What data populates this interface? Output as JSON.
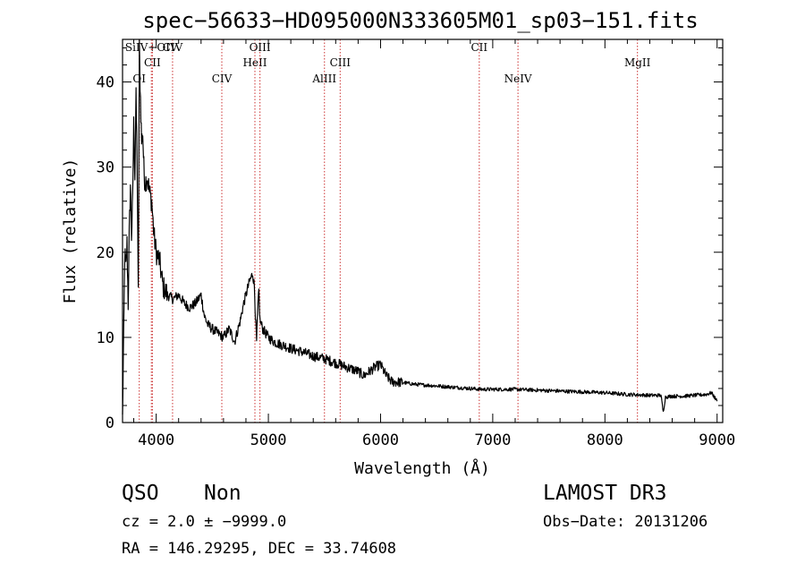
{
  "chart_data": {
    "type": "line",
    "title": "spec−56633−HD095000N333605M01_sp03−151.fits",
    "xlabel": "Wavelength (Å)",
    "ylabel": "Flux (relative)",
    "xlim": [
      3700,
      9050
    ],
    "ylim": [
      0,
      45
    ],
    "xticks": [
      4000,
      5000,
      6000,
      7000,
      8000,
      9000
    ],
    "yticks": [
      0,
      10,
      20,
      30,
      40
    ],
    "line_color": "#000000",
    "marker_color": "#cc3333",
    "spectrum": {
      "name": "flux",
      "x": [
        3700,
        3710,
        3720,
        3730,
        3740,
        3750,
        3760,
        3770,
        3780,
        3790,
        3800,
        3810,
        3820,
        3830,
        3840,
        3850,
        3860,
        3870,
        3880,
        3890,
        3900,
        3920,
        3940,
        3960,
        3980,
        4000,
        4030,
        4060,
        4100,
        4150,
        4200,
        4250,
        4300,
        4350,
        4400,
        4430,
        4460,
        4500,
        4550,
        4600,
        4650,
        4700,
        4720,
        4750,
        4780,
        4800,
        4830,
        4860,
        4875,
        4885,
        4895,
        4905,
        4915,
        4925,
        4950,
        5000,
        5050,
        5100,
        5150,
        5200,
        5300,
        5400,
        5500,
        5600,
        5700,
        5800,
        5850,
        5900,
        5950,
        6000,
        6050,
        6100,
        6200,
        6300,
        6400,
        6500,
        6600,
        6700,
        6800,
        6900,
        7000,
        7200,
        7400,
        7600,
        7800,
        8000,
        8200,
        8400,
        8500,
        8520,
        8540,
        8600,
        8700,
        8800,
        8900,
        8950,
        9000
      ],
      "values": [
        0.5,
        10,
        20,
        18,
        21,
        14,
        22,
        28,
        22,
        26,
        35,
        29,
        38,
        31,
        15,
        44,
        38,
        33,
        34,
        30,
        28,
        29,
        27,
        26,
        22,
        20,
        19,
        16,
        15,
        14.5,
        15,
        14,
        13.5,
        14,
        15,
        12.5,
        11.5,
        11,
        10.5,
        10,
        11,
        9.5,
        10.5,
        12,
        14,
        15,
        16.5,
        17.5,
        16,
        12.5,
        9.5,
        13,
        15.5,
        12,
        11,
        10,
        9.5,
        9.2,
        9,
        8.7,
        8.3,
        7.8,
        7.5,
        7,
        6.5,
        6,
        5.5,
        6,
        6.5,
        6.8,
        5.5,
        4.8,
        4.7,
        4.5,
        4.4,
        4.3,
        4.2,
        4.1,
        4,
        3.9,
        3.9,
        3.9,
        3.8,
        3.7,
        3.6,
        3.5,
        3.3,
        3.2,
        3.2,
        1.2,
        3,
        3.1,
        3.1,
        3.2,
        3.3,
        3.5,
        2.5
      ]
    },
    "lines": [
      {
        "label": "OI",
        "wavelength": 3849
      },
      {
        "label": "SiIV+OIV",
        "wavelength": 3957
      },
      {
        "label": "CII",
        "wavelength": 3966
      },
      {
        "label": "CIV",
        "wavelength": 4146
      },
      {
        "label": "CIV",
        "wavelength": 4585
      },
      {
        "label": "HeII",
        "wavelength": 4880
      },
      {
        "label": "OIII",
        "wavelength": 4925
      },
      {
        "label": "AlIII",
        "wavelength": 5500
      },
      {
        "label": "CIII",
        "wavelength": 5640
      },
      {
        "label": "CII",
        "wavelength": 6880
      },
      {
        "label": "NeIV",
        "wavelength": 7225
      },
      {
        "label": "MgII",
        "wavelength": 8290
      }
    ]
  },
  "info": {
    "class": "QSO",
    "subclass": "Non",
    "cz": "cz = 2.0 ± −9999.0",
    "radec": "RA = 146.29295, DEC =  33.74608",
    "survey": "LAMOST DR3",
    "obsdate": "Obs−Date: 20131206"
  }
}
